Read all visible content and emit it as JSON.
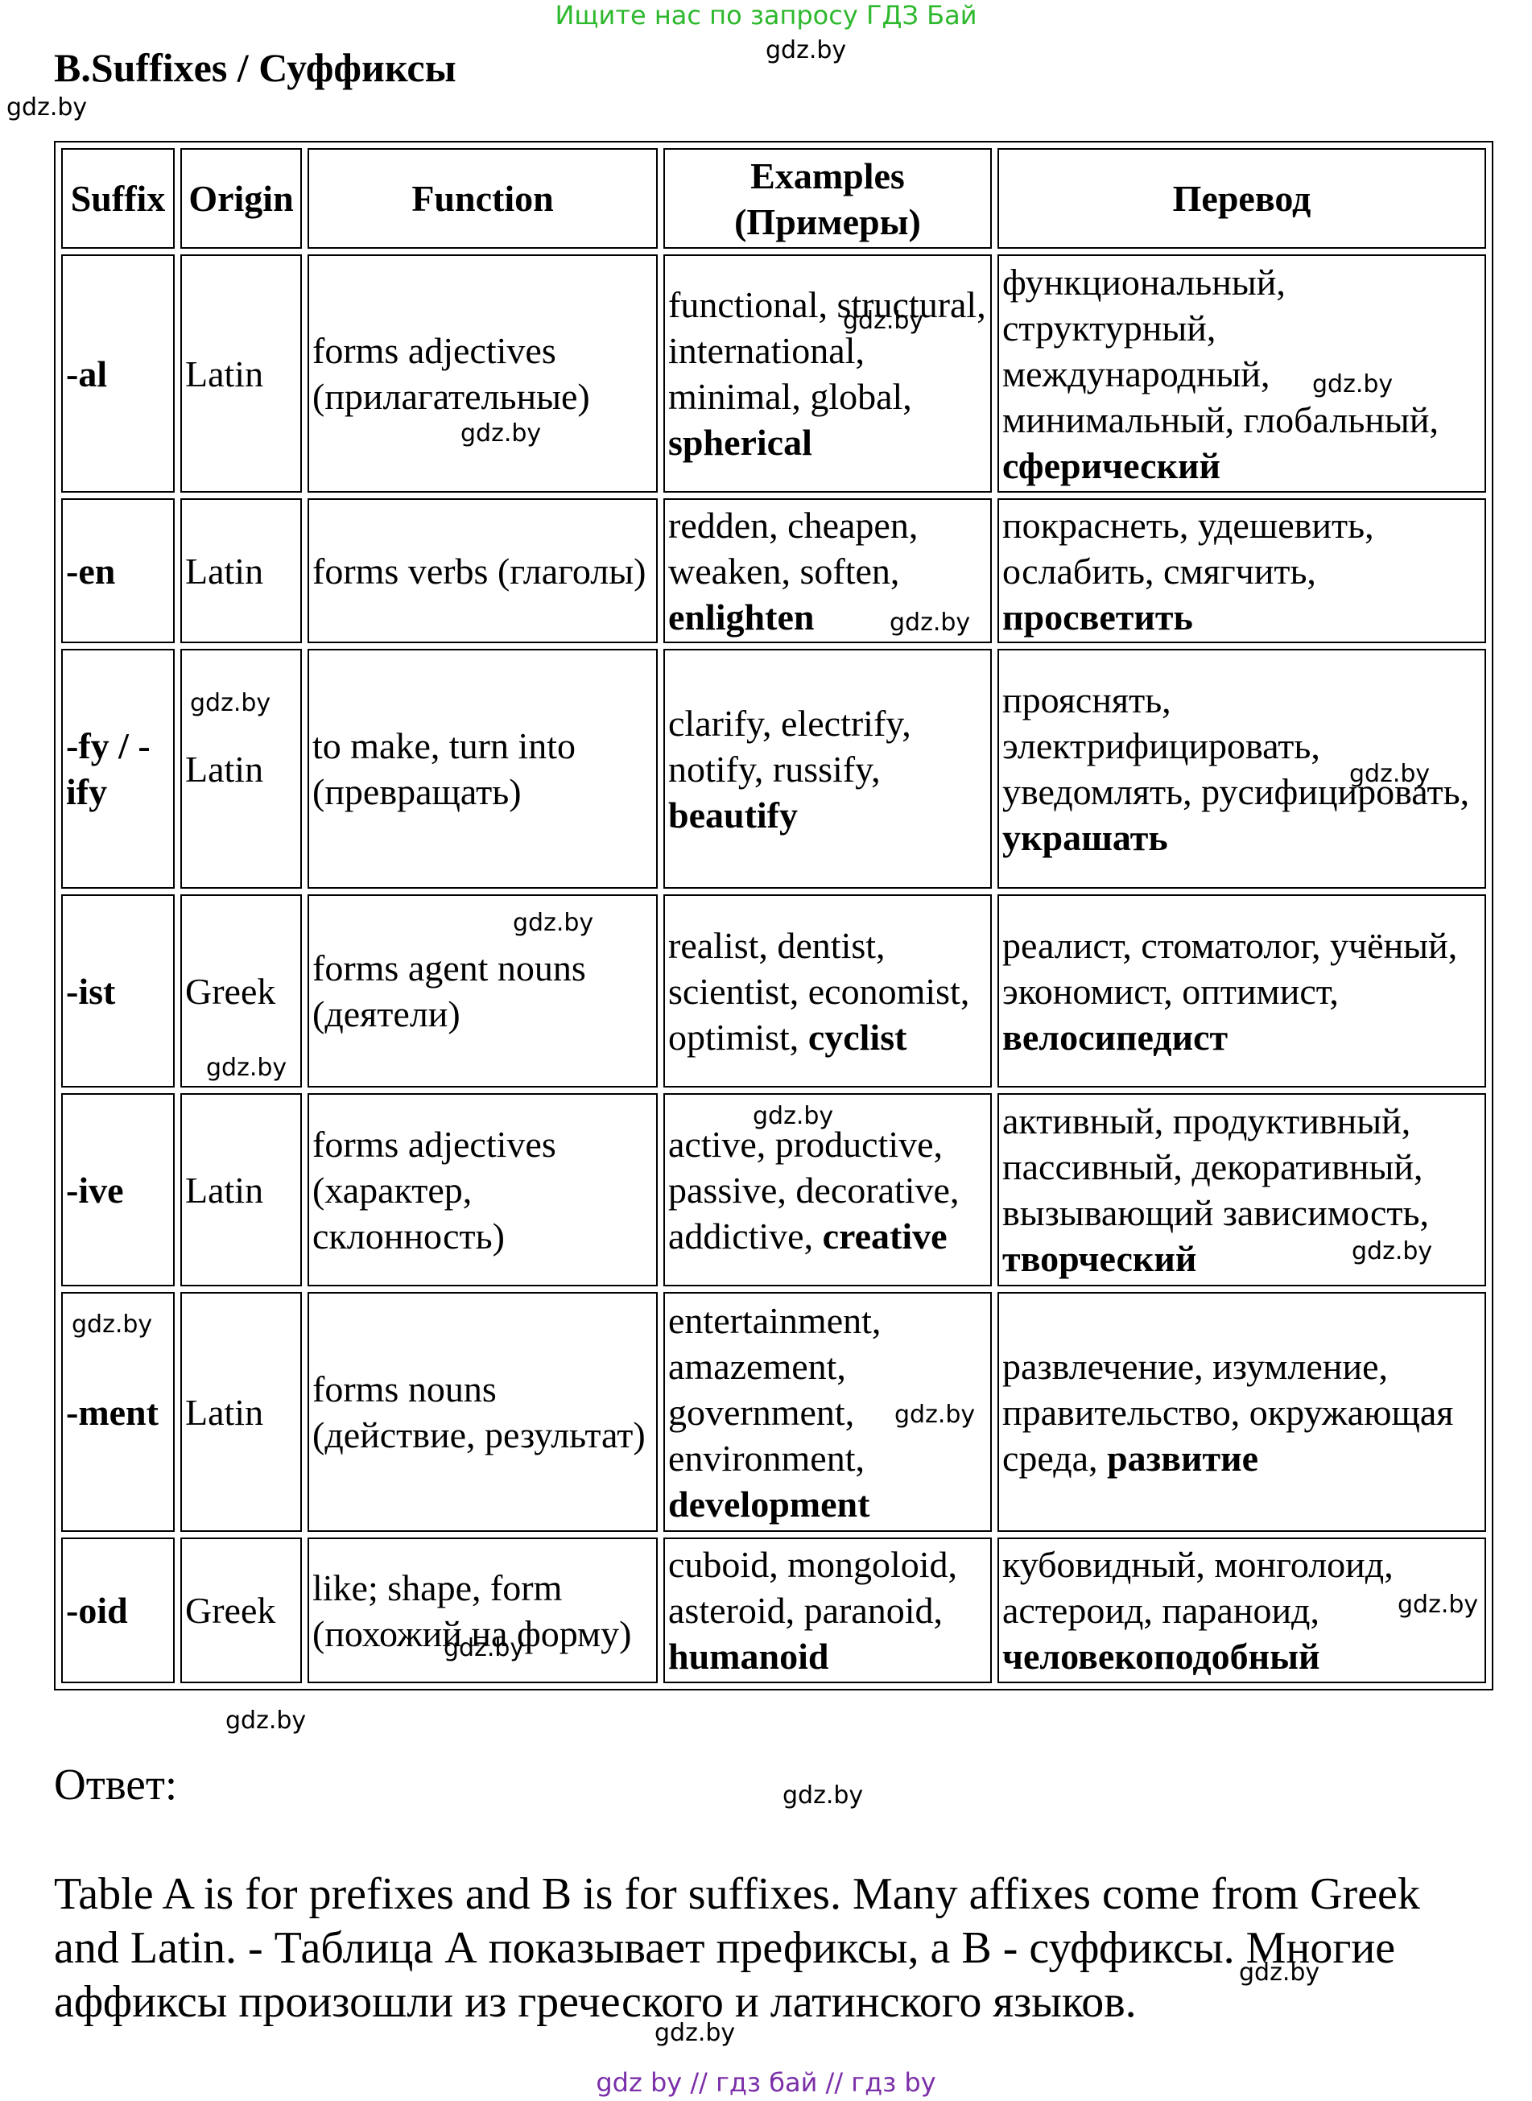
{
  "header_note": "Ищите нас по запросу ГДЗ Бай",
  "title": "B.Suffixes / Суффиксы",
  "table": {
    "columns": [
      "Suffix",
      "Origin",
      "Function",
      "Examples (Примеры)",
      "Перевод"
    ],
    "rows": [
      [
        "-al",
        "Latin",
        "forms adjectives (прилагательные)",
        {
          "text": "functional, structural, international, minimal, global,",
          "bold": "spherical"
        },
        {
          "text": "функциональный, структурный, международный, минимальный, глобальный,",
          "bold": "сферический"
        }
      ],
      [
        "-en",
        "Latin",
        "forms verbs (глаголы)",
        {
          "text": "redden, cheapen, weaken, soften,",
          "bold": "enlighten"
        },
        {
          "text": "покраснеть, удешевить, ослабить, смягчить,",
          "bold": "просветить"
        }
      ],
      [
        "-fy / -ify",
        "Latin",
        "to make, turn into (превращать)",
        {
          "text": "clarify, electrify, notify, russify,",
          "bold": "beautify"
        },
        {
          "text": "прояснять, электрифицировать, уведомлять, русифицировать,",
          "bold": "украшать"
        }
      ],
      [
        "-ist",
        "Greek",
        "forms agent nouns (деятели)",
        {
          "text": "realist, dentist, scientist, economist, optimist,",
          "bold": "cyclist"
        },
        {
          "text": "реалист, стоматолог, учёный, экономист, оптимист,",
          "bold": "велосипедист"
        }
      ],
      [
        "-ive",
        "Latin",
        "forms adjectives (характер, склонность)",
        {
          "text": "active, productive, passive, decorative, addictive,",
          "bold": "creative"
        },
        {
          "text": "активный, продуктивный, пассивный, декоративный, вызывающий зависимость,",
          "bold": "творческий"
        }
      ],
      [
        "-ment",
        "Latin",
        "forms nouns (действие, результат)",
        {
          "text": "entertainment, amazement, government, environment,",
          "bold": "development"
        },
        {
          "text": "развлечение, изумление, правительство, окружающая среда,",
          "bold": "развитие"
        }
      ],
      [
        "-oid",
        "Greek",
        "like; shape, form (похожий на форму)",
        {
          "text": "cuboid, mongoloid, asteroid, paranoid,",
          "bold": "humanoid"
        },
        {
          "text": "кубовидный, монголоид, астероид, параноид,",
          "bold": "человекоподобный"
        }
      ]
    ]
  },
  "answer": {
    "label": "Ответ:",
    "text": "Table A is for prefixes and B is for suffixes. Many affixes come from Greek and Latin. - Таблица А показывает префиксы, а В - суффиксы. Многие аффиксы произошли из греческого и латинского языков."
  },
  "watermarks": [
    "gdz.by",
    "gdz.by",
    "gdz.by",
    "gdz.by",
    "gdz.by",
    "gdz.by",
    "gdz.by",
    "gdz.by",
    "gdz.by",
    "gdz.by",
    "gdz.by",
    "gdz.by",
    "gdz.by",
    "gdz.by",
    "gdz.by",
    "gdz.by",
    "gdz.by",
    "gdz.by",
    "gdz.by",
    "gdz.by"
  ],
  "footer": "gdz by  //  гдз бай  //  гдз by"
}
